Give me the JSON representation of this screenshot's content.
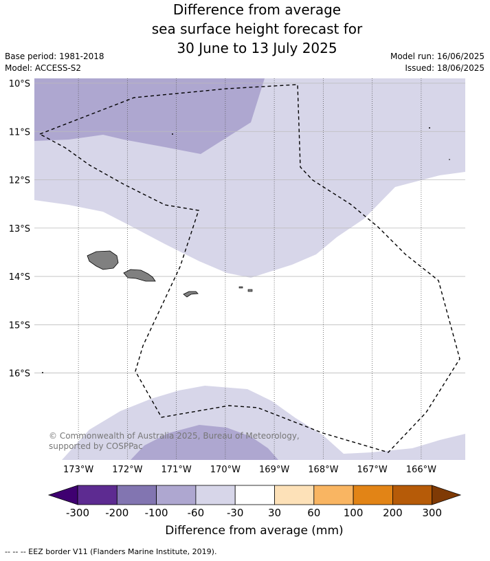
{
  "title_lines": [
    "Difference from average",
    "sea surface height forecast for",
    "30 June to 13 July 2025"
  ],
  "meta_left": [
    "Base period: 1981-2018",
    "Model: ACCESS-S2"
  ],
  "meta_right": [
    "Model run: 16/06/2025",
    "Issued: 18/06/2025"
  ],
  "map": {
    "lat_labels": [
      "10°S",
      "11°S",
      "12°S",
      "13°S",
      "14°S",
      "15°S",
      "16°S"
    ],
    "lon_labels": [
      "173°W",
      "172°W",
      "171°W",
      "170°W",
      "169°W",
      "168°W",
      "167°W",
      "166°W"
    ],
    "lat_range": [
      -17.8,
      -9.9
    ],
    "lon_range": [
      -173.9,
      -165.1
    ],
    "copyright": "© Commonwealth of Australia 2025, Bureau of Meteorology, supported by COSPPac",
    "colors": {
      "band_-100_-60": "#aea7d0",
      "band_-60_-30": "#d7d6e9",
      "land": "#808080"
    }
  },
  "colorbar": {
    "title": "Difference from average (mm)",
    "ticks": [
      "-300",
      "-200",
      "-100",
      "-60",
      "-30",
      "30",
      "60",
      "100",
      "200",
      "300"
    ],
    "colors": [
      "#3f0071",
      "#5d2b91",
      "#8275b1",
      "#aea7d0",
      "#d7d6e9",
      "#ffffff",
      "#fde1b8",
      "#f9b562",
      "#e28416",
      "#b65b08",
      "#7f3a05"
    ]
  },
  "footnote": "--  --  -- EEZ border V11 (Flanders Marine Institute, 2019)."
}
